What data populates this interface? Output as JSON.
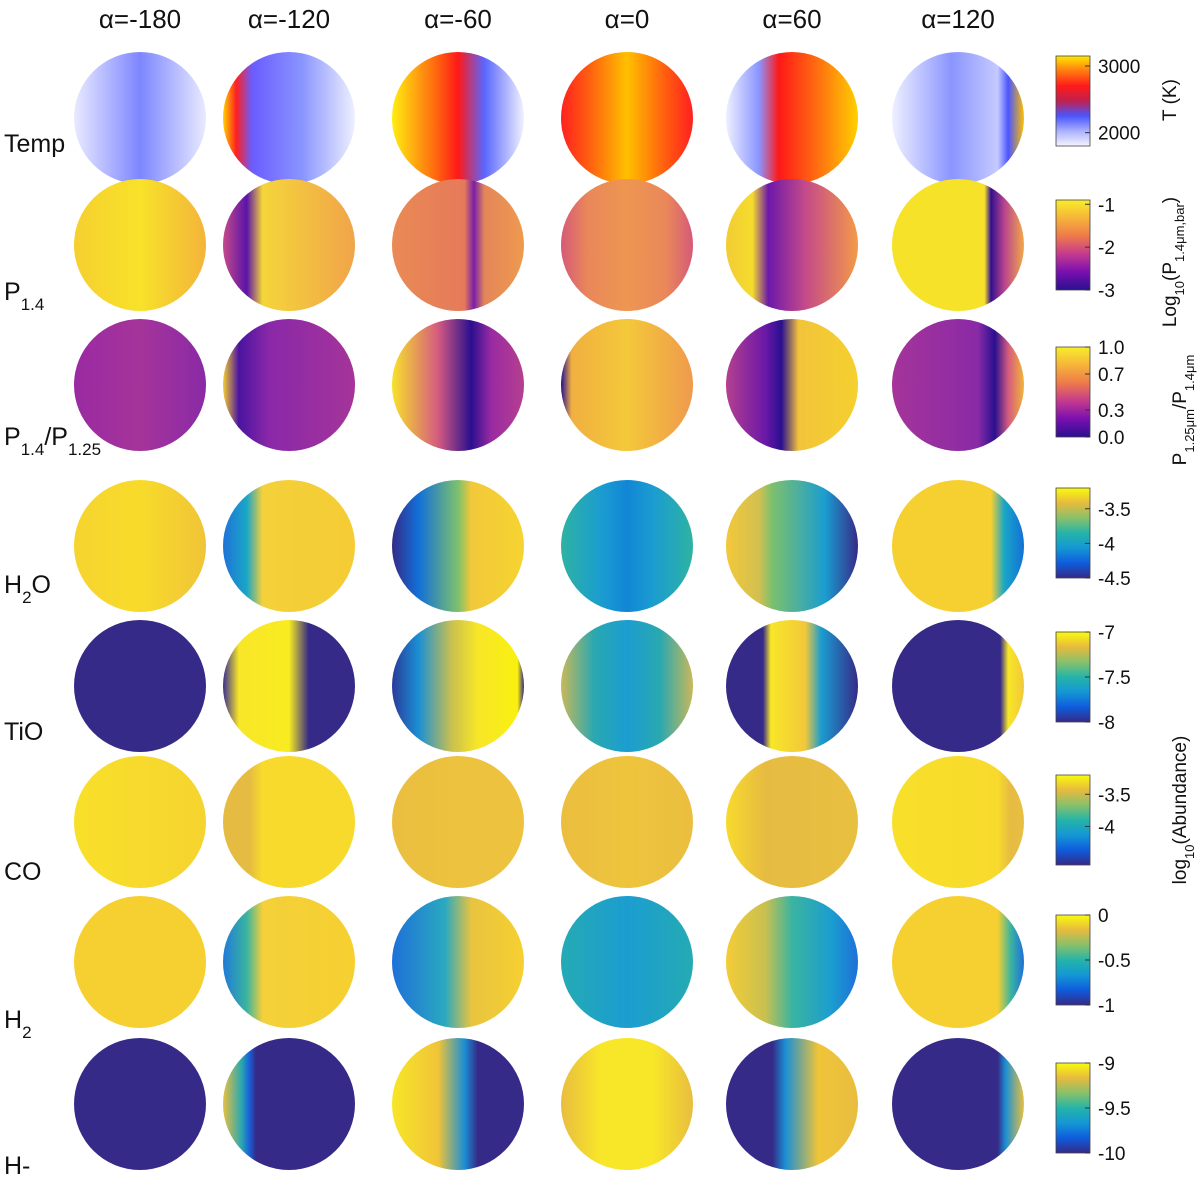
{
  "chart_data": {
    "type": "heatmap",
    "description_title": "",
    "phase_label_prefix": "α=",
    "phases": [
      -180,
      -120,
      -60,
      0,
      60,
      120
    ],
    "column_titles": [
      "α=-180",
      "α=-120",
      "α=-60",
      "α=0",
      "α=60",
      "α=120"
    ],
    "rows": [
      {
        "key": "temp",
        "label": "Temp",
        "label_sub": "",
        "label_rest": "",
        "colormap": "temp",
        "colorbar": {
          "ticks": [
            "3000",
            "2000"
          ],
          "tick_values": [
            3000,
            2000
          ],
          "range": [
            1800,
            3150
          ],
          "title_main": "T (K)",
          "title_sub": "",
          "title_rest": ""
        }
      },
      {
        "key": "p14",
        "label": "P",
        "label_sub": "1.4",
        "label_rest": "",
        "colormap": "plasma",
        "colorbar": {
          "ticks": [
            "-1",
            "-2",
            "-3"
          ],
          "tick_values": [
            -1,
            -2,
            -3
          ],
          "range": [
            -3,
            -0.9
          ],
          "title_main": "Log",
          "title_sub": "10",
          "title_rest": "(P",
          "title_sub2": "1.4μm,bar",
          "title_end": ")"
        }
      },
      {
        "key": "pratio",
        "label": "P",
        "label_sub": "1.4",
        "label_rest": "/P",
        "label_sub2": "1.25",
        "colormap": "plasma",
        "colorbar": {
          "ticks": [
            "1.0",
            "0.7",
            "0.3",
            "0.0"
          ],
          "tick_values": [
            1.0,
            0.7,
            0.3,
            0.0
          ],
          "range": [
            0,
            1.0
          ],
          "title_main": "P",
          "title_sub": "1.25μm",
          "title_rest": "/P",
          "title_sub2": "1.4μm",
          "title_end": ""
        }
      },
      {
        "key": "h2o",
        "label": "H",
        "label_sub": "2",
        "label_rest": "O",
        "colormap": "parula",
        "colorbar": {
          "ticks": [
            "-3.5",
            "-4",
            "-4.5"
          ],
          "tick_values": [
            -3.5,
            -4,
            -4.5
          ],
          "range": [
            -4.5,
            -3.2
          ],
          "title_main": "",
          "title_sub": "",
          "title_rest": ""
        }
      },
      {
        "key": "tio",
        "label": "TiO",
        "label_sub": "",
        "label_rest": "",
        "colormap": "parula",
        "colorbar": {
          "ticks": [
            "-7",
            "-7.5",
            "-8"
          ],
          "tick_values": [
            -7,
            -7.5,
            -8
          ],
          "range": [
            -8,
            -7
          ],
          "title_main": "",
          "title_sub": "",
          "title_rest": ""
        }
      },
      {
        "key": "co",
        "label": "CO",
        "label_sub": "",
        "label_rest": "",
        "colormap": "parula",
        "colorbar": {
          "ticks": [
            "-3.5",
            "-4"
          ],
          "tick_values": [
            -3.5,
            -4
          ],
          "range": [
            -4.6,
            -3.2
          ],
          "title_main": "",
          "title_sub": "",
          "title_rest": ""
        }
      },
      {
        "key": "h2",
        "label": "H",
        "label_sub": "2",
        "label_rest": "",
        "colormap": "parula",
        "colorbar": {
          "ticks": [
            "0",
            "-0.5",
            "-1"
          ],
          "tick_values": [
            0,
            -0.5,
            -1
          ],
          "range": [
            -1,
            0
          ],
          "title_main": "",
          "title_sub": "",
          "title_rest": ""
        }
      },
      {
        "key": "hminus",
        "label": "H-",
        "label_sub": "",
        "label_rest": "",
        "colormap": "parula",
        "colorbar": {
          "ticks": [
            "-9",
            "-9.5",
            "-10"
          ],
          "tick_values": [
            -9,
            -9.5,
            -10
          ],
          "range": [
            -10,
            -9
          ],
          "title_main": "",
          "title_sub": "",
          "title_rest": ""
        }
      }
    ],
    "abundance_axis_label": {
      "main": "log",
      "sub": "10",
      "rest": "(Abundance)"
    }
  }
}
